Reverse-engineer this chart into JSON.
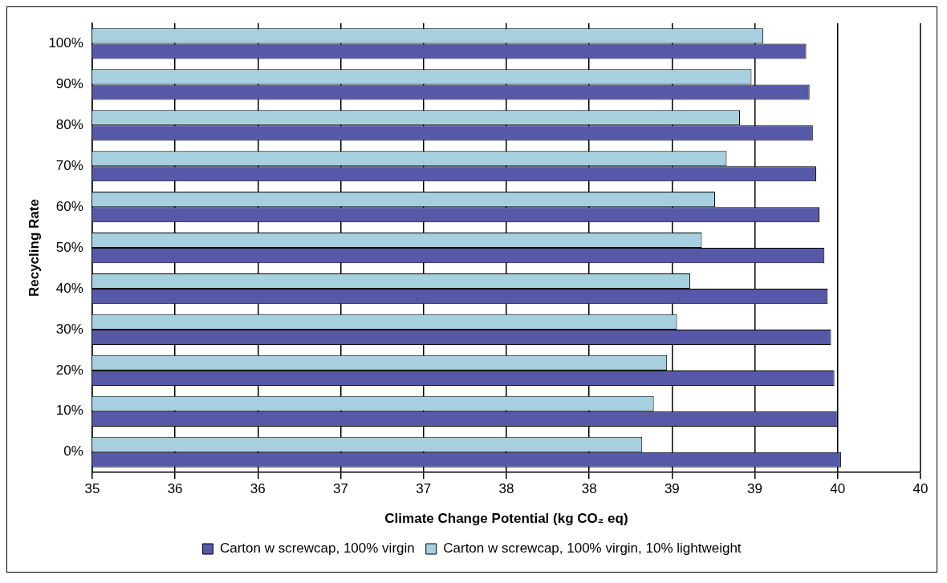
{
  "chart_data": {
    "type": "bar",
    "orientation": "horizontal",
    "xlabel": "Climate Change Potential (kg CO₂ eq)",
    "ylabel": "Recycling Rate",
    "categories": [
      "100%",
      "90%",
      "80%",
      "70%",
      "60%",
      "50%",
      "40%",
      "30%",
      "20%",
      "10%",
      "0%"
    ],
    "series": [
      {
        "name": "Carton w screwcap, 100% virgin",
        "color": "#5659a8",
        "values": [
          39.31,
          39.33,
          39.35,
          39.37,
          39.39,
          39.42,
          39.44,
          39.46,
          39.48,
          39.5,
          39.52
        ]
      },
      {
        "name": "Carton w screwcap, 100% virgin, 10% lightweight",
        "color": "#a6cfe0",
        "values": [
          39.05,
          38.98,
          38.91,
          38.83,
          38.76,
          38.68,
          38.61,
          38.53,
          38.47,
          38.39,
          38.32
        ]
      }
    ],
    "xlim": [
      35,
      40
    ],
    "xticks": [
      35,
      {
        "value": 35.5,
        "label": "36"
      },
      36,
      {
        "value": 36.5,
        "label": "37"
      },
      37,
      {
        "value": 37.5,
        "label": "38"
      },
      38,
      {
        "value": 38.5,
        "label": "39"
      },
      39,
      {
        "value": 39.5,
        "label": "40"
      },
      40
    ],
    "grid": "x",
    "legend": "bottom"
  }
}
